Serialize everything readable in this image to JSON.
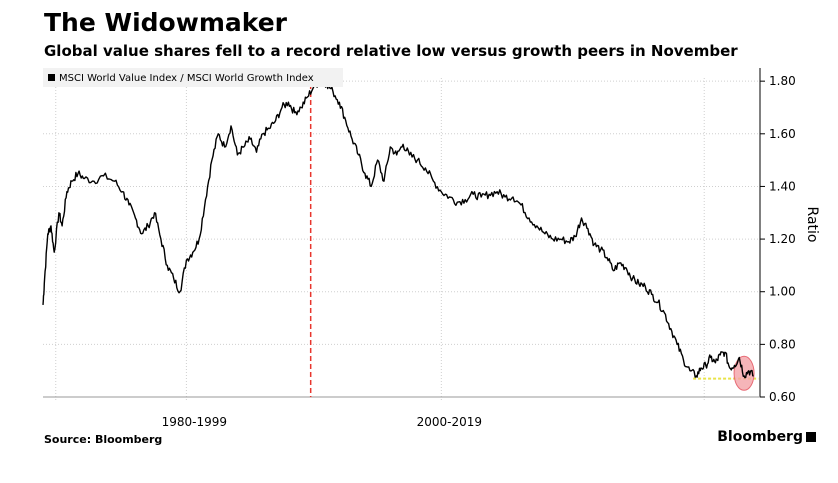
{
  "header": {
    "title": "The Widowmaker",
    "subtitle": "Global value shares fell to a record relative low versus growth peers in November"
  },
  "footer": {
    "source": "Source: Bloomberg",
    "brand": "Bloomberg"
  },
  "colors": {
    "line": "#000000",
    "divider": "#e8362e",
    "highlight": "#f4a3a8",
    "support": "#e8e34a",
    "grid": "#cfcfcf"
  },
  "chart_data": {
    "type": "line",
    "title": "The Widowmaker",
    "subtitle": "Global value shares fell to a record relative low versus growth peers in November",
    "ylabel": "Ratio",
    "ylim": [
      0.6,
      1.85
    ],
    "yticks": [
      "0.60",
      "0.80",
      "1.00",
      "1.20",
      "1.40",
      "1.60",
      "1.80"
    ],
    "ytick_values": [
      0.6,
      0.8,
      1.0,
      1.2,
      1.4,
      1.6,
      1.8
    ],
    "xlim": [
      1975.0,
      2020.0
    ],
    "x_period_labels": [
      "1980-1999",
      "2000-2019"
    ],
    "x_period_centers": [
      1984.5,
      2000.5
    ],
    "grid": true,
    "legend_position": "top-left",
    "divider_x": 1991.8,
    "highlight": {
      "x": 2019.0,
      "y": 0.69
    },
    "support_level": 0.67,
    "series": [
      {
        "name": "MSCI World Value Index / MSCI World Growth Index",
        "x": [
          1975.0,
          1975.1,
          1975.3,
          1975.5,
          1975.7,
          1976.0,
          1976.2,
          1976.5,
          1976.8,
          1977.2,
          1977.6,
          1978.2,
          1978.8,
          1979.5,
          1980.0,
          1980.4,
          1980.8,
          1981.2,
          1981.6,
          1982.0,
          1982.4,
          1982.8,
          1983.2,
          1983.6,
          1984.0,
          1984.4,
          1984.8,
          1985.2,
          1985.6,
          1986.0,
          1986.4,
          1986.8,
          1987.2,
          1987.6,
          1988.0,
          1988.4,
          1988.8,
          1989.2,
          1989.6,
          1990.0,
          1990.4,
          1990.8,
          1991.2,
          1991.6,
          1992.0,
          1992.4,
          1992.8,
          1993.2,
          1993.6,
          1994.0,
          1994.4,
          1994.8,
          1995.2,
          1995.6,
          1996.0,
          1996.4,
          1996.8,
          1997.2,
          1997.6,
          1998.0,
          1998.5,
          1999.0,
          1999.5,
          2000.0,
          2000.5,
          2001.0,
          2001.5,
          2002.0,
          2002.5,
          2003.0,
          2003.5,
          2004.0,
          2004.5,
          2005.0,
          2005.5,
          2006.0,
          2006.5,
          2007.0,
          2007.5,
          2008.0,
          2008.4,
          2008.8,
          2009.2,
          2009.6,
          2010.0,
          2010.4,
          2010.8,
          2011.2,
          2011.6,
          2012.0,
          2012.4,
          2012.8,
          2013.2,
          2013.6,
          2014.0,
          2014.4,
          2014.8,
          2015.2,
          2015.6,
          2016.0,
          2016.3,
          2016.6,
          2016.9,
          2017.2,
          2017.5,
          2017.8,
          2018.1,
          2018.4,
          2018.7,
          2019.0,
          2019.3,
          2019.6
        ],
        "values": [
          0.95,
          1.05,
          1.22,
          1.25,
          1.15,
          1.3,
          1.25,
          1.38,
          1.42,
          1.45,
          1.43,
          1.42,
          1.44,
          1.42,
          1.38,
          1.33,
          1.28,
          1.22,
          1.25,
          1.3,
          1.2,
          1.1,
          1.05,
          1.0,
          1.12,
          1.15,
          1.2,
          1.35,
          1.5,
          1.6,
          1.55,
          1.63,
          1.52,
          1.55,
          1.58,
          1.53,
          1.6,
          1.62,
          1.65,
          1.7,
          1.72,
          1.68,
          1.7,
          1.74,
          1.78,
          1.8,
          1.79,
          1.76,
          1.72,
          1.65,
          1.58,
          1.52,
          1.45,
          1.4,
          1.5,
          1.42,
          1.55,
          1.52,
          1.56,
          1.52,
          1.5,
          1.47,
          1.42,
          1.38,
          1.36,
          1.34,
          1.35,
          1.37,
          1.36,
          1.37,
          1.38,
          1.36,
          1.36,
          1.33,
          1.28,
          1.25,
          1.22,
          1.2,
          1.2,
          1.19,
          1.21,
          1.28,
          1.24,
          1.18,
          1.16,
          1.13,
          1.08,
          1.11,
          1.09,
          1.05,
          1.03,
          1.02,
          0.99,
          0.96,
          0.92,
          0.86,
          0.8,
          0.74,
          0.7,
          0.68,
          0.71,
          0.72,
          0.75,
          0.73,
          0.76,
          0.77,
          0.71,
          0.72,
          0.75,
          0.68,
          0.7,
          0.68
        ]
      }
    ]
  }
}
